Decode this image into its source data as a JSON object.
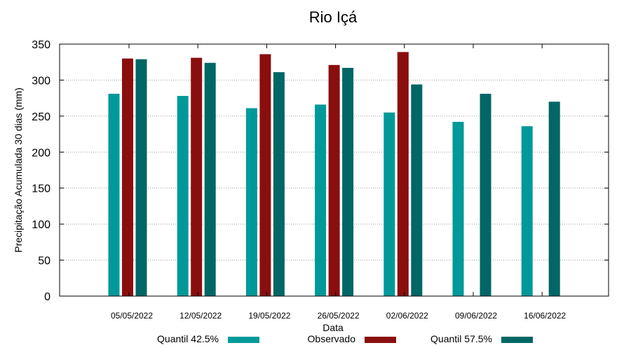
{
  "chart_data": {
    "type": "bar",
    "title": "Rio Içá",
    "xlabel": "Data",
    "ylabel": "Precipitação Acumulada 30 dias (mm)",
    "ylim": [
      0,
      350
    ],
    "yticks": [
      "0",
      "50",
      "100",
      "150",
      "200",
      "250",
      "300",
      "350"
    ],
    "grid": true,
    "legend_position": "bottom",
    "categories": [
      "05/05/2022",
      "12/05/2022",
      "19/05/2022",
      "26/05/2022",
      "02/06/2022",
      "09/06/2022",
      "16/06/2022"
    ],
    "series": [
      {
        "name": "Quantil 42.5%",
        "color": "#009999",
        "values": [
          281,
          278,
          261,
          266,
          255,
          242,
          236
        ]
      },
      {
        "name": "Observado",
        "color": "#8b0e0e",
        "values": [
          330,
          331,
          336,
          321,
          339,
          null,
          null
        ]
      },
      {
        "name": "Quantil 57.5%",
        "color": "#006666",
        "values": [
          329,
          324,
          311,
          317,
          294,
          281,
          270
        ]
      }
    ]
  }
}
